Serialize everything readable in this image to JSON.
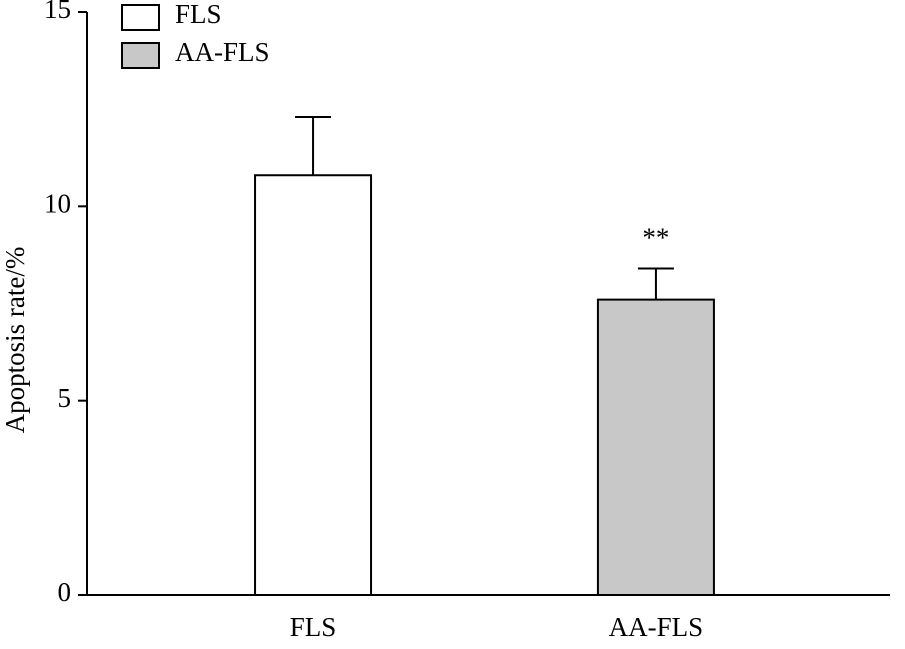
{
  "chart_data": {
    "type": "bar",
    "ylabel": "Apoptosis rate/%",
    "categories": [
      "FLS",
      "AA-FLS"
    ],
    "series": [
      {
        "name": "FLS",
        "color": "#ffffff",
        "values": [
          10.8,
          null
        ],
        "errors": [
          1.5,
          null
        ]
      },
      {
        "name": "AA-FLS",
        "color": "#c8c8c8",
        "values": [
          null,
          7.6
        ],
        "errors": [
          null,
          0.8
        ]
      }
    ],
    "annotations": [
      {
        "text": "**",
        "series": 1,
        "category": 1
      }
    ],
    "ylim": [
      0,
      15
    ],
    "yticks": [
      0,
      5,
      10,
      15
    ],
    "grid": false
  }
}
